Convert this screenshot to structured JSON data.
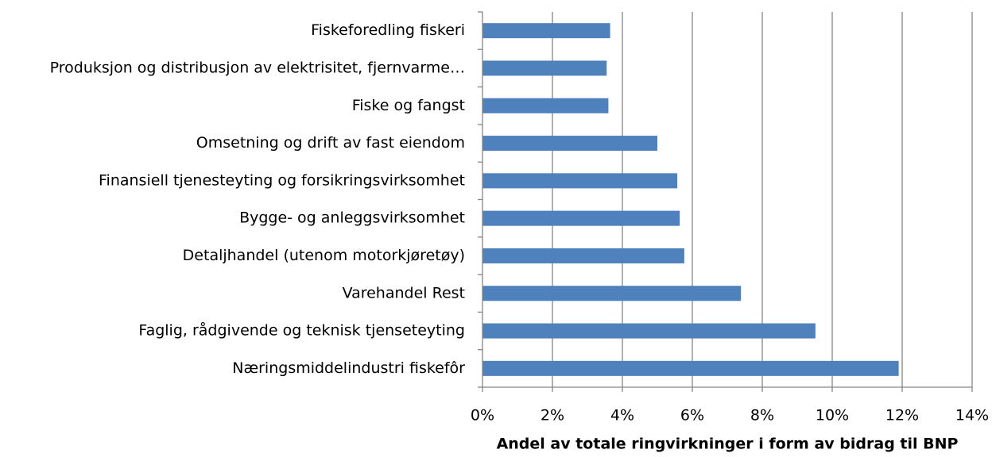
{
  "chart_data": {
    "type": "bar",
    "orientation": "horizontal",
    "x_label": "Andel av totale ringvirkninger i form av bidrag til BNP",
    "categories": [
      "Fiskeforedling fiskeri",
      "Produksjon og distribusjon av elektrisitet, fjernvarme…",
      "Fiske og fangst",
      "Omsetning og drift av fast eiendom",
      "Finansiell tjenesteyting og forsikringsvirksomhet",
      "Bygge- og anleggsvirksomhet",
      "Detaljhandel (utenom motorkjøretøy)",
      "Varehandel Rest",
      "Faglig, rådgivende og teknisk tjenseteyting",
      "Næringsmiddelindustri fiskefôr"
    ],
    "values": [
      3.65,
      3.55,
      3.6,
      5.0,
      5.57,
      5.64,
      5.77,
      7.39,
      9.52,
      11.9
    ],
    "color": "#4f81bd",
    "xlim": [
      0,
      14
    ],
    "xticks": [
      {
        "value": 0,
        "label": "0%"
      },
      {
        "value": 2,
        "label": "2%"
      },
      {
        "value": 4,
        "label": "4%"
      },
      {
        "value": 6,
        "label": "6%"
      },
      {
        "value": 8,
        "label": "8%"
      },
      {
        "value": 10,
        "label": "10%"
      },
      {
        "value": 12,
        "label": "12%"
      },
      {
        "value": 14,
        "label": "14%"
      }
    ],
    "grid": true
  }
}
